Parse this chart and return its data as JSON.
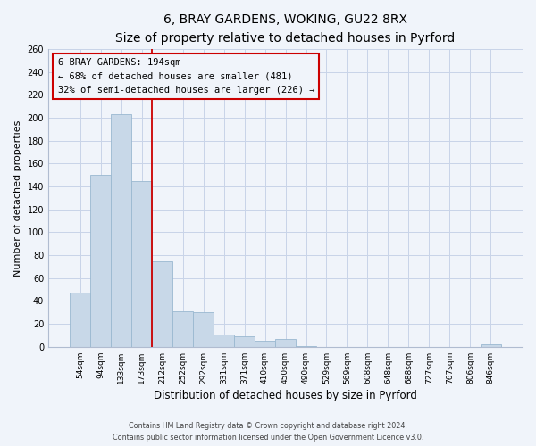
{
  "title": "6, BRAY GARDENS, WOKING, GU22 8RX",
  "subtitle": "Size of property relative to detached houses in Pyrford",
  "xlabel": "Distribution of detached houses by size in Pyrford",
  "ylabel": "Number of detached properties",
  "bar_labels": [
    "54sqm",
    "94sqm",
    "133sqm",
    "173sqm",
    "212sqm",
    "252sqm",
    "292sqm",
    "331sqm",
    "371sqm",
    "410sqm",
    "450sqm",
    "490sqm",
    "529sqm",
    "569sqm",
    "608sqm",
    "648sqm",
    "688sqm",
    "727sqm",
    "767sqm",
    "806sqm",
    "846sqm"
  ],
  "bar_values": [
    47,
    150,
    203,
    145,
    75,
    31,
    30,
    11,
    9,
    5,
    7,
    1,
    0,
    0,
    0,
    0,
    0,
    0,
    0,
    0,
    2
  ],
  "bar_color": "#c8d8e8",
  "bar_edge_color": "#9ab8d0",
  "vline_color": "#cc0000",
  "annotation_title": "6 BRAY GARDENS: 194sqm",
  "annotation_line1": "← 68% of detached houses are smaller (481)",
  "annotation_line2": "32% of semi-detached houses are larger (226) →",
  "annotation_box_edge": "#cc0000",
  "ylim": [
    0,
    260
  ],
  "yticks": [
    0,
    20,
    40,
    60,
    80,
    100,
    120,
    140,
    160,
    180,
    200,
    220,
    240,
    260
  ],
  "footer_line1": "Contains HM Land Registry data © Crown copyright and database right 2024.",
  "footer_line2": "Contains public sector information licensed under the Open Government Licence v3.0.",
  "bg_color": "#f0f4fa",
  "grid_color": "#c8d4e8"
}
